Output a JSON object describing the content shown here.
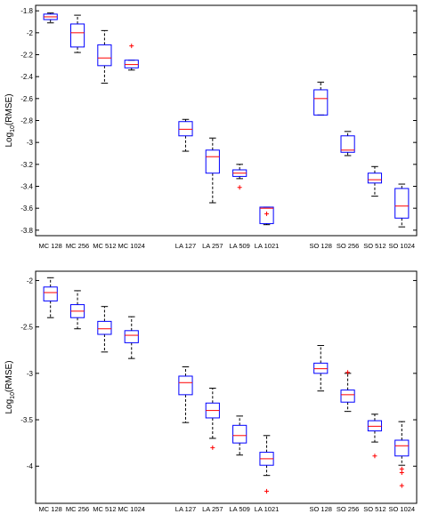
{
  "colors": {
    "box": "#0000ff",
    "median": "#ff0000",
    "whisker": "#000000",
    "outlier": "#ff0000",
    "axis": "#000000"
  },
  "chart_data": [
    {
      "type": "boxplot",
      "title": "",
      "xlabel": "",
      "ylabel_base": "Log",
      "ylabel_sub": "10",
      "ylabel_rest": "(RMSE)",
      "ylim": [
        -3.85,
        -1.75
      ],
      "yticks": [
        -1.8,
        -2,
        -2.2,
        -2.4,
        -2.6,
        -2.8,
        -3,
        -3.2,
        -3.4,
        -3.6,
        -3.8
      ],
      "ytick_labels": [
        "-1.8",
        "-2",
        "-2.2",
        "-2.4",
        "-2.6",
        "-2.8",
        "-3",
        "-3.2",
        "-3.4",
        "-3.6",
        "-3.8"
      ],
      "grid": false,
      "positions": [
        1,
        2,
        3,
        4,
        6,
        7,
        8,
        9,
        11,
        12,
        13,
        14
      ],
      "categories": [
        "MC 128",
        "MC 256",
        "MC 512",
        "MC 1024",
        "LA 127",
        "LA 257",
        "LA 509",
        "LA 1021",
        "SO 128",
        "SO 256",
        "SO 512",
        "SO 1024"
      ],
      "boxes": [
        {
          "whislo": -1.91,
          "q1": -1.88,
          "med": -1.855,
          "q3": -1.83,
          "whishi": -1.82,
          "fliers": []
        },
        {
          "whislo": -2.18,
          "q1": -2.13,
          "med": -2.0,
          "q3": -1.92,
          "whishi": -1.84,
          "fliers": []
        },
        {
          "whislo": -2.46,
          "q1": -2.3,
          "med": -2.23,
          "q3": -2.11,
          "whishi": -1.98,
          "fliers": []
        },
        {
          "whislo": -2.34,
          "q1": -2.32,
          "med": -2.29,
          "q3": -2.25,
          "whishi": -2.25,
          "fliers": [
            -2.12
          ]
        },
        {
          "whislo": -3.08,
          "q1": -2.94,
          "med": -2.88,
          "q3": -2.81,
          "whishi": -2.79,
          "fliers": []
        },
        {
          "whislo": -3.55,
          "q1": -3.28,
          "med": -3.13,
          "q3": -3.07,
          "whishi": -2.96,
          "fliers": []
        },
        {
          "whislo": -3.33,
          "q1": -3.31,
          "med": -3.28,
          "q3": -3.25,
          "whishi": -3.2,
          "fliers": [
            -3.41
          ]
        },
        {
          "whislo": -3.75,
          "q1": -3.74,
          "med": -3.6,
          "q3": -3.59,
          "whishi": -3.59,
          "fliers": [
            -3.65
          ]
        },
        {
          "whislo": -2.75,
          "q1": -2.75,
          "med": -2.6,
          "q3": -2.52,
          "whishi": -2.45,
          "fliers": []
        },
        {
          "whislo": -3.12,
          "q1": -3.09,
          "med": -3.07,
          "q3": -2.94,
          "whishi": -2.9,
          "fliers": []
        },
        {
          "whislo": -3.49,
          "q1": -3.37,
          "med": -3.34,
          "q3": -3.28,
          "whishi": -3.22,
          "fliers": []
        },
        {
          "whislo": -3.77,
          "q1": -3.69,
          "med": -3.58,
          "q3": -3.42,
          "whishi": -3.38,
          "fliers": []
        }
      ]
    },
    {
      "type": "boxplot",
      "title": "",
      "xlabel": "",
      "ylabel_base": "Log",
      "ylabel_sub": "10",
      "ylabel_rest": "(RMSE)",
      "ylim": [
        -4.4,
        -1.9
      ],
      "yticks": [
        -2,
        -2.5,
        -3,
        -3.5,
        -4
      ],
      "ytick_labels": [
        "-2",
        "-2.5",
        "-3",
        "-3.5",
        "-4"
      ],
      "grid": false,
      "positions": [
        1,
        2,
        3,
        4,
        6,
        7,
        8,
        9,
        11,
        12,
        13,
        14
      ],
      "categories": [
        "MC 128",
        "MC 256",
        "MC 512",
        "MC 1024",
        "LA 127",
        "LA 257",
        "LA 509",
        "LA 1021",
        "SO 128",
        "SO 256",
        "SO 512",
        "SO 1024"
      ],
      "boxes": [
        {
          "whislo": -2.4,
          "q1": -2.22,
          "med": -2.13,
          "q3": -2.07,
          "whishi": -1.97,
          "fliers": []
        },
        {
          "whislo": -2.52,
          "q1": -2.4,
          "med": -2.33,
          "q3": -2.26,
          "whishi": -2.11,
          "fliers": []
        },
        {
          "whislo": -2.77,
          "q1": -2.58,
          "med": -2.52,
          "q3": -2.44,
          "whishi": -2.28,
          "fliers": []
        },
        {
          "whislo": -2.84,
          "q1": -2.67,
          "med": -2.59,
          "q3": -2.54,
          "whishi": -2.39,
          "fliers": []
        },
        {
          "whislo": -3.53,
          "q1": -3.23,
          "med": -3.1,
          "q3": -3.03,
          "whishi": -2.93,
          "fliers": []
        },
        {
          "whislo": -3.7,
          "q1": -3.48,
          "med": -3.4,
          "q3": -3.32,
          "whishi": -3.16,
          "fliers": [
            -3.8
          ]
        },
        {
          "whislo": -3.88,
          "q1": -3.75,
          "med": -3.67,
          "q3": -3.56,
          "whishi": -3.46,
          "fliers": []
        },
        {
          "whislo": -4.1,
          "q1": -3.99,
          "med": -3.92,
          "q3": -3.85,
          "whishi": -3.67,
          "fliers": [
            -4.27
          ]
        },
        {
          "whislo": -3.19,
          "q1": -3.0,
          "med": -2.95,
          "q3": -2.89,
          "whishi": -2.7,
          "fliers": []
        },
        {
          "whislo": -3.41,
          "q1": -3.31,
          "med": -3.23,
          "q3": -3.18,
          "whishi": -3.0,
          "fliers": [
            -2.99
          ]
        },
        {
          "whislo": -3.74,
          "q1": -3.62,
          "med": -3.57,
          "q3": -3.51,
          "whishi": -3.44,
          "fliers": [
            -3.89
          ]
        },
        {
          "whislo": -3.99,
          "q1": -3.89,
          "med": -3.78,
          "q3": -3.72,
          "whishi": -3.52,
          "fliers": [
            -4.03,
            -4.07,
            -4.21
          ]
        }
      ]
    }
  ]
}
